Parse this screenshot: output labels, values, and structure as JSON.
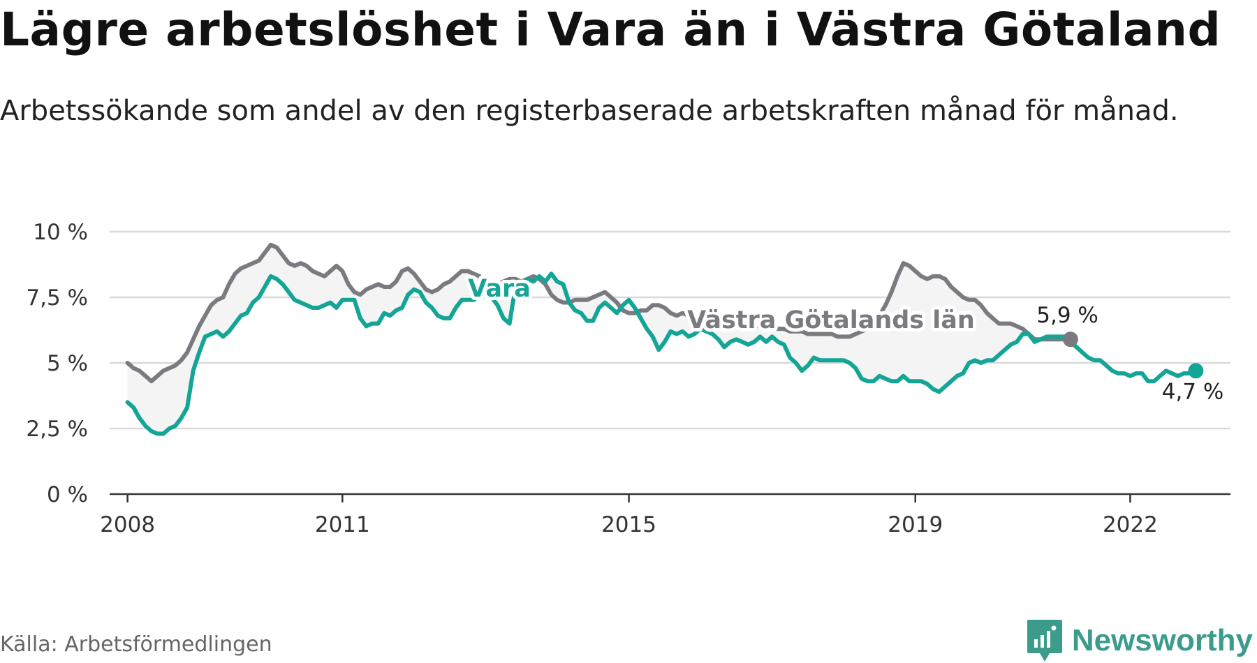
{
  "header": {
    "title": "Lägre arbetslöshet i Vara än i Västra Götaland",
    "subtitle": "Arbetssökande som andel av den registerbaserade arbetskraften månad för månad."
  },
  "footer": {
    "source": "Källa: Arbetsförmedlingen",
    "brand": "Newsworthy"
  },
  "colors": {
    "vara": "#14a597",
    "region": "#7a7a80",
    "band": "#f4f4f4",
    "grid": "#d9d9d9",
    "axis": "#333333"
  },
  "chart_data": {
    "type": "line",
    "title": "Lägre arbetslöshet i Vara än i Västra Götaland",
    "subtitle": "Arbetssökande som andel av den registerbaserade arbetskraften månad för månad.",
    "ylim": [
      0,
      10
    ],
    "xlim": [
      2007.75,
      2023.4
    ],
    "y_ticks": [
      0,
      2.5,
      5,
      7.5,
      10
    ],
    "y_tick_labels": [
      "0 %",
      "2,5 %",
      "5 %",
      "7,5 %",
      "10 %"
    ],
    "x_ticks": [
      2008,
      2011,
      2015,
      2019,
      2022
    ],
    "x_tick_labels": [
      "2008",
      "2011",
      "2015",
      "2019",
      "2022"
    ],
    "grid": true,
    "series": [
      {
        "name": "Västra Götalands län",
        "label": "Västra Götalands län",
        "end_label": "5,9 %",
        "end_value": 5.9,
        "x_start": 2008.0,
        "x_step": 0.08333,
        "values": [
          5.0,
          4.8,
          4.7,
          4.5,
          4.3,
          4.5,
          4.7,
          4.8,
          4.9,
          5.1,
          5.4,
          5.9,
          6.4,
          6.8,
          7.2,
          7.4,
          7.5,
          8.0,
          8.4,
          8.6,
          8.7,
          8.8,
          8.9,
          9.2,
          9.5,
          9.4,
          9.1,
          8.8,
          8.7,
          8.8,
          8.7,
          8.5,
          8.4,
          8.3,
          8.5,
          8.7,
          8.5,
          8.0,
          7.7,
          7.6,
          7.8,
          7.9,
          8.0,
          7.9,
          7.9,
          8.1,
          8.5,
          8.6,
          8.4,
          8.1,
          7.8,
          7.7,
          7.8,
          8.0,
          8.1,
          8.3,
          8.5,
          8.5,
          8.4,
          8.3,
          8.1,
          8.0,
          8.0,
          8.1,
          8.2,
          8.2,
          8.1,
          8.2,
          8.3,
          8.2,
          8.0,
          7.6,
          7.4,
          7.3,
          7.3,
          7.4,
          7.4,
          7.4,
          7.5,
          7.6,
          7.7,
          7.5,
          7.3,
          7.0,
          6.9,
          6.9,
          7.0,
          7.0,
          7.2,
          7.2,
          7.1,
          6.9,
          6.8,
          6.9,
          6.8,
          6.8,
          6.7,
          6.6,
          6.5,
          6.5,
          6.5,
          6.6,
          6.6,
          6.6,
          6.5,
          6.4,
          6.4,
          6.4,
          6.3,
          6.3,
          6.3,
          6.2,
          6.2,
          6.2,
          6.1,
          6.1,
          6.1,
          6.1,
          6.1,
          6.0,
          6.0,
          6.0,
          6.1,
          6.2,
          6.3,
          6.5,
          6.8,
          7.2,
          7.7,
          8.3,
          8.8,
          8.7,
          8.5,
          8.3,
          8.2,
          8.3,
          8.3,
          8.2,
          7.9,
          7.7,
          7.5,
          7.4,
          7.4,
          7.2,
          6.9,
          6.7,
          6.5,
          6.5,
          6.5,
          6.4,
          6.3,
          6.1,
          5.9,
          5.9,
          5.9,
          5.9,
          5.9,
          5.9,
          5.9
        ]
      },
      {
        "name": "Vara",
        "label": "Vara",
        "end_label": "4,7 %",
        "end_value": 4.7,
        "x_start": 2008.0,
        "x_step": 0.08333,
        "values": [
          3.5,
          3.3,
          2.9,
          2.6,
          2.4,
          2.3,
          2.3,
          2.5,
          2.6,
          2.9,
          3.3,
          4.7,
          5.4,
          6.0,
          6.1,
          6.2,
          6.0,
          6.2,
          6.5,
          6.8,
          6.9,
          7.3,
          7.5,
          7.9,
          8.3,
          8.2,
          8.0,
          7.7,
          7.4,
          7.3,
          7.2,
          7.1,
          7.1,
          7.2,
          7.3,
          7.1,
          7.4,
          7.4,
          7.4,
          6.7,
          6.4,
          6.5,
          6.5,
          6.9,
          6.8,
          7.0,
          7.1,
          7.6,
          7.8,
          7.7,
          7.3,
          7.1,
          6.8,
          6.7,
          6.7,
          7.1,
          7.4,
          7.4,
          7.4,
          7.6,
          7.7,
          7.5,
          7.2,
          6.7,
          6.5,
          7.9,
          8.0,
          8.2,
          8.1,
          8.3,
          8.1,
          8.4,
          8.1,
          8.0,
          7.3,
          7.0,
          6.9,
          6.6,
          6.6,
          7.1,
          7.3,
          7.1,
          6.9,
          7.2,
          7.4,
          7.1,
          6.7,
          6.3,
          6.0,
          5.5,
          5.8,
          6.2,
          6.1,
          6.2,
          6.0,
          6.1,
          6.3,
          6.2,
          6.1,
          5.9,
          5.6,
          5.8,
          5.9,
          5.8,
          5.7,
          5.8,
          6.0,
          5.8,
          6.0,
          5.8,
          5.7,
          5.2,
          5.0,
          4.7,
          4.9,
          5.2,
          5.1,
          5.1,
          5.1,
          5.1,
          5.1,
          5.0,
          4.8,
          4.4,
          4.3,
          4.3,
          4.5,
          4.4,
          4.3,
          4.3,
          4.5,
          4.3,
          4.3,
          4.3,
          4.2,
          4.0,
          3.9,
          4.1,
          4.3,
          4.5,
          4.6,
          5.0,
          5.1,
          5.0,
          5.1,
          5.1,
          5.3,
          5.5,
          5.7,
          5.8,
          6.1,
          6.1,
          5.8,
          5.9,
          6.0,
          6.0,
          6.0,
          6.0,
          5.8,
          5.6,
          5.4,
          5.2,
          5.1,
          5.1,
          4.9,
          4.7,
          4.6,
          4.6,
          4.5,
          4.6,
          4.6,
          4.3,
          4.3,
          4.5,
          4.7,
          4.6,
          4.5,
          4.6,
          4.6,
          4.7
        ]
      }
    ]
  }
}
